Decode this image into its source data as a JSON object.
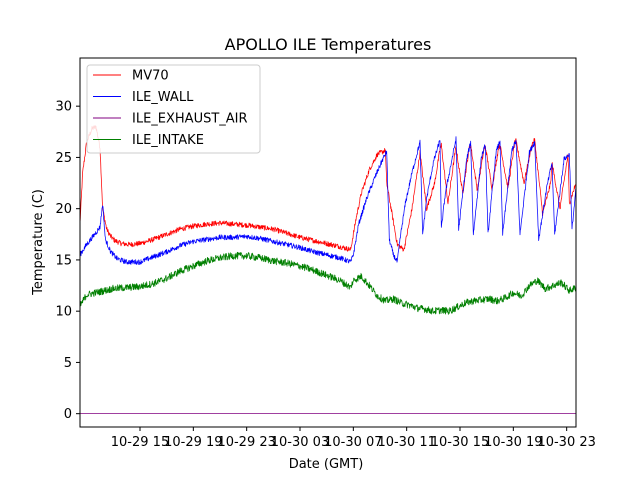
{
  "chart_data": {
    "type": "line",
    "title": "APOLLO ILE Temperatures",
    "xlabel": "Date (GMT)",
    "ylabel": "Temperature (C)",
    "xlim": [
      10.5,
      47.7
    ],
    "ylim": [
      -1.3,
      34.7
    ],
    "x_unit": "hours since 2018-10-29 00:00 GMT",
    "x_ticks": [
      {
        "value": 15,
        "label": "10-29 15"
      },
      {
        "value": 19,
        "label": "10-29 19"
      },
      {
        "value": 23,
        "label": "10-29 23"
      },
      {
        "value": 27,
        "label": "10-30 03"
      },
      {
        "value": 31,
        "label": "10-30 07"
      },
      {
        "value": 35,
        "label": "10-30 11"
      },
      {
        "value": 39,
        "label": "10-30 15"
      },
      {
        "value": 43,
        "label": "10-30 19"
      },
      {
        "value": 47,
        "label": "10-30 23"
      }
    ],
    "y_ticks": [
      0,
      5,
      10,
      15,
      20,
      25,
      30
    ],
    "grid": false,
    "legend_position": "top-left",
    "series": [
      {
        "name": "MV70",
        "color": "#ff0000",
        "noise": 0.25,
        "x": [
          10.5,
          10.7,
          11.0,
          11.4,
          11.7,
          12.0,
          12.2,
          12.5,
          12.8,
          13.1,
          13.6,
          14.2,
          15.0,
          16.0,
          17.0,
          18.0,
          19.0,
          20.0,
          21.0,
          22.0,
          23.0,
          24.0,
          25.0,
          26.0,
          27.0,
          28.0,
          29.0,
          30.0,
          30.8,
          31.2,
          31.6,
          32.2,
          32.8,
          33.4,
          33.5,
          33.9,
          34.3,
          34.8,
          35.4,
          35.9,
          36.0,
          36.5,
          37.1,
          37.5,
          37.6,
          38.1,
          38.6,
          38.7,
          39.2,
          39.7,
          39.8,
          40.3,
          40.8,
          40.9,
          41.4,
          41.9,
          42.0,
          42.6,
          43.1,
          43.2,
          43.8,
          44.4,
          44.6,
          45.2,
          45.8,
          45.9,
          46.5,
          47.1,
          47.2,
          47.7
        ],
        "y": [
          18.5,
          23.5,
          26.5,
          27.8,
          28.0,
          26.0,
          20.0,
          18.0,
          17.3,
          16.9,
          16.6,
          16.5,
          16.6,
          17.0,
          17.5,
          18.0,
          18.3,
          18.5,
          18.6,
          18.5,
          18.4,
          18.2,
          18.0,
          17.6,
          17.2,
          16.9,
          16.6,
          16.3,
          16.0,
          19.0,
          21.5,
          23.8,
          25.3,
          25.7,
          22.5,
          19.5,
          16.5,
          16.0,
          20.0,
          24.5,
          25.5,
          20.0,
          22.5,
          25.8,
          26.2,
          20.5,
          25.2,
          26.0,
          21.5,
          26.0,
          26.2,
          21.8,
          25.8,
          26.1,
          22.0,
          26.0,
          26.2,
          22.0,
          26.4,
          26.6,
          22.5,
          26.3,
          26.7,
          19.5,
          22.5,
          24.5,
          20.0,
          25.3,
          20.5,
          22.5
        ]
      },
      {
        "name": "ILE_WALL",
        "color": "#0000ff",
        "noise": 0.25,
        "x": [
          10.5,
          11.0,
          11.6,
          12.0,
          12.2,
          12.4,
          12.8,
          13.3,
          14.0,
          15.0,
          16.0,
          17.0,
          18.0,
          19.0,
          20.0,
          21.0,
          22.0,
          23.0,
          24.0,
          25.0,
          26.0,
          27.0,
          28.0,
          29.0,
          30.0,
          30.8,
          31.0,
          31.4,
          32.0,
          32.6,
          33.2,
          33.5,
          33.7,
          34.0,
          34.3,
          34.5,
          34.9,
          35.4,
          35.9,
          36.0,
          36.2,
          36.5,
          37.0,
          37.5,
          37.6,
          37.9,
          38.5,
          38.7,
          38.9,
          39.5,
          39.8,
          40.0,
          40.6,
          40.9,
          41.1,
          41.7,
          42.0,
          42.2,
          42.9,
          43.2,
          43.5,
          44.2,
          44.6,
          44.9,
          45.5,
          45.9,
          46.1,
          46.8,
          47.2,
          47.4,
          47.7
        ],
        "y": [
          15.5,
          16.5,
          17.5,
          18.2,
          20.5,
          17.0,
          15.8,
          15.1,
          14.8,
          14.8,
          15.3,
          15.8,
          16.4,
          16.8,
          17.0,
          17.2,
          17.2,
          17.3,
          17.1,
          16.8,
          16.5,
          16.2,
          15.8,
          15.5,
          15.2,
          14.8,
          15.5,
          18.5,
          21.0,
          23.0,
          24.8,
          25.6,
          17.0,
          15.5,
          14.8,
          17.0,
          20.5,
          23.5,
          26.0,
          26.5,
          17.5,
          21.0,
          24.5,
          26.7,
          18.0,
          21.5,
          25.5,
          26.8,
          18.0,
          24.8,
          26.5,
          17.5,
          25.0,
          26.2,
          17.5,
          25.5,
          26.6,
          17.5,
          25.8,
          26.6,
          17.5,
          25.5,
          26.5,
          17.0,
          22.0,
          24.5,
          17.5,
          24.8,
          25.3,
          18.0,
          22.0
        ]
      },
      {
        "name": "ILE_EXHAUST_AIR",
        "color": "#800080",
        "noise": 0,
        "x": [
          10.5,
          47.7
        ],
        "y": [
          0.0,
          0.0
        ]
      },
      {
        "name": "ILE_INTAKE",
        "color": "#008000",
        "noise": 0.35,
        "x": [
          10.5,
          11.0,
          12.0,
          13.0,
          14.0,
          15.0,
          16.0,
          17.0,
          18.0,
          19.0,
          20.0,
          21.0,
          22.0,
          23.0,
          24.0,
          25.0,
          26.0,
          27.0,
          28.0,
          29.0,
          30.0,
          30.8,
          31.0,
          31.6,
          32.2,
          32.8,
          33.4,
          34.0,
          34.6,
          35.2,
          35.8,
          36.4,
          37.0,
          37.6,
          38.2,
          38.8,
          39.4,
          40.0,
          40.6,
          41.2,
          41.8,
          42.4,
          43.0,
          43.6,
          44.2,
          44.8,
          45.4,
          46.0,
          46.6,
          47.2,
          47.7
        ],
        "y": [
          10.5,
          11.6,
          11.9,
          12.2,
          12.3,
          12.4,
          12.7,
          13.2,
          13.9,
          14.4,
          14.9,
          15.2,
          15.4,
          15.4,
          15.2,
          14.9,
          14.7,
          14.4,
          14.0,
          13.5,
          13.0,
          12.3,
          13.0,
          13.4,
          12.5,
          11.5,
          11.0,
          11.2,
          10.8,
          10.6,
          10.3,
          10.2,
          10.0,
          10.1,
          10.0,
          10.4,
          10.8,
          11.0,
          11.1,
          11.2,
          11.0,
          11.3,
          11.8,
          11.5,
          12.5,
          13.0,
          12.2,
          12.5,
          12.8,
          12.0,
          12.3
        ]
      }
    ]
  }
}
